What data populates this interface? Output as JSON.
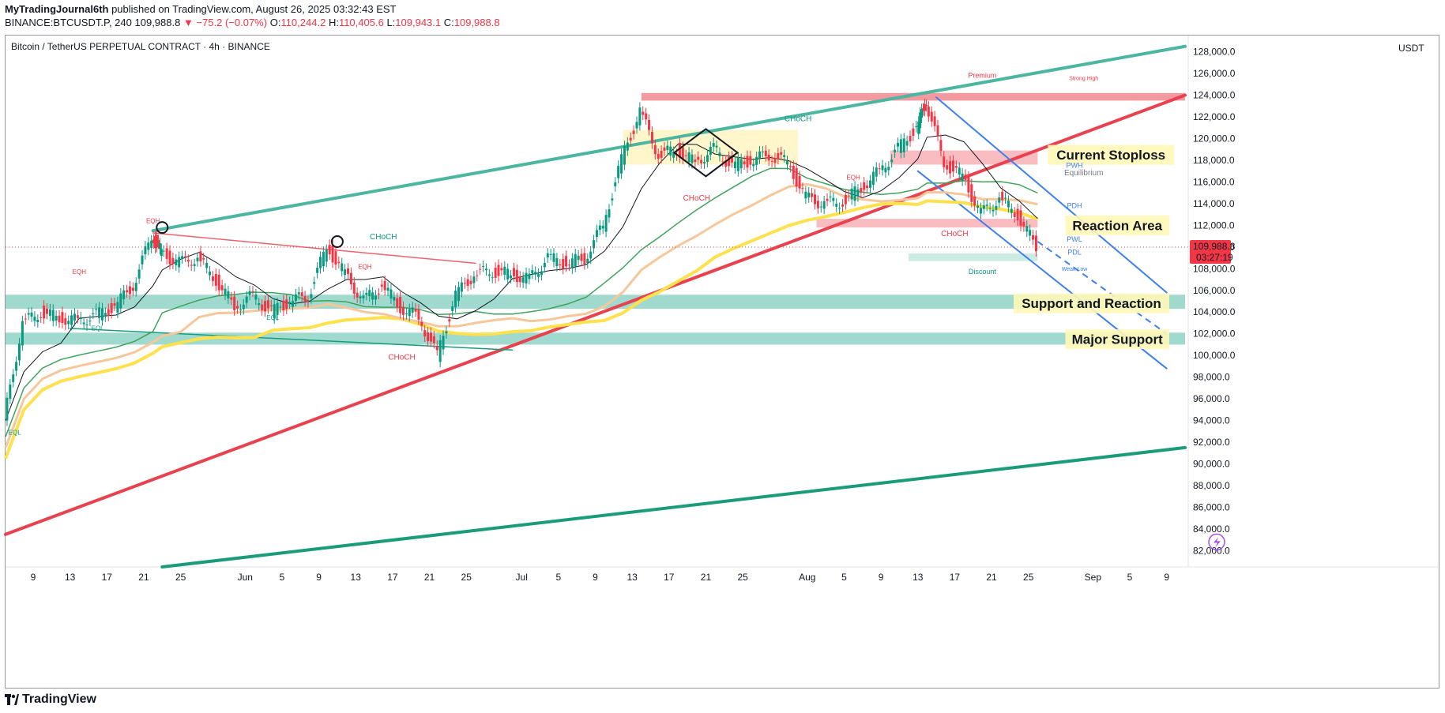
{
  "header": {
    "publisher": "MyTradingJournal6th",
    "published_text": " published on TradingView.com, August 26, 2025 03:32:43 EST",
    "symbol_line": "BINANCE:BTCUSDT.P, 240",
    "last": "109,988.8",
    "change": "▼ −75.2 (−0.07%)",
    "o_label": "O:",
    "o": "110,244.2",
    "h_label": "H:",
    "h": "110,405.6",
    "l_label": "L:",
    "l": "109,943.1",
    "c_label": "C:",
    "c": "109,988.8"
  },
  "footer": {
    "brand": "TradingView"
  },
  "colors": {
    "teal_line": "#4db6a1",
    "red_line": "#e8424f",
    "green_line": "#1a9c7b",
    "blue_channel": "#3d7ff0",
    "zone_teal": "#8fd3c6",
    "zone_red": "#f5a0a6",
    "label_bg": "#fff7b8"
  },
  "chart_data": {
    "type": "line",
    "title": "Bitcoin / TetherUS PERPETUAL CONTRACT · 4h · BINANCE",
    "unit": "USDT",
    "ylim": [
      80500,
      129500
    ],
    "y_ticks": [
      82000,
      84000,
      86000,
      88000,
      90000,
      92000,
      94000,
      96000,
      98000,
      100000,
      102000,
      104000,
      106000,
      108000,
      110000,
      112000,
      114000,
      116000,
      118000,
      120000,
      122000,
      124000,
      126000,
      128000
    ],
    "y_tick_labels": [
      "82,000.0",
      "84,000.0",
      "86,000.0",
      "88,000.0",
      "90,000.0",
      "92,000.0",
      "94,000.0",
      "96,000.0",
      "98,000.0",
      "100,000.0",
      "102,000.0",
      "104,000.0",
      "106,000.0",
      "108,000.0",
      "110,000.0",
      "112,000.0",
      "114,000.0",
      "116,000.0",
      "118,000.0",
      "120,000.0",
      "122,000.0",
      "124,000.0",
      "126,000.0",
      "128,000.0"
    ],
    "x_start": "2025-05-06",
    "x_end": "2025-09-11",
    "x_ticks": [
      {
        "date": "2025-05-09",
        "label": "9"
      },
      {
        "date": "2025-05-13",
        "label": "13"
      },
      {
        "date": "2025-05-17",
        "label": "17"
      },
      {
        "date": "2025-05-21",
        "label": "21"
      },
      {
        "date": "2025-05-25",
        "label": "25"
      },
      {
        "date": "2025-06-01",
        "label": "Jun"
      },
      {
        "date": "2025-06-05",
        "label": "5"
      },
      {
        "date": "2025-06-09",
        "label": "9"
      },
      {
        "date": "2025-06-13",
        "label": "13"
      },
      {
        "date": "2025-06-17",
        "label": "17"
      },
      {
        "date": "2025-06-21",
        "label": "21"
      },
      {
        "date": "2025-06-25",
        "label": "25"
      },
      {
        "date": "2025-07-01",
        "label": "Jul"
      },
      {
        "date": "2025-07-05",
        "label": "5"
      },
      {
        "date": "2025-07-09",
        "label": "9"
      },
      {
        "date": "2025-07-13",
        "label": "13"
      },
      {
        "date": "2025-07-17",
        "label": "17"
      },
      {
        "date": "2025-07-21",
        "label": "21"
      },
      {
        "date": "2025-07-25",
        "label": "25"
      },
      {
        "date": "2025-08-01",
        "label": "Aug"
      },
      {
        "date": "2025-08-05",
        "label": "5"
      },
      {
        "date": "2025-08-09",
        "label": "9"
      },
      {
        "date": "2025-08-13",
        "label": "13"
      },
      {
        "date": "2025-08-17",
        "label": "17"
      },
      {
        "date": "2025-08-21",
        "label": "21"
      },
      {
        "date": "2025-08-25",
        "label": "25"
      },
      {
        "date": "2025-09-01",
        "label": "Sep"
      },
      {
        "date": "2025-09-05",
        "label": "5"
      },
      {
        "date": "2025-09-09",
        "label": "9"
      }
    ],
    "price_series": {
      "x": [
        "2025-05-06",
        "2025-05-08",
        "2025-05-10",
        "2025-05-12",
        "2025-05-14",
        "2025-05-16",
        "2025-05-18",
        "2025-05-20",
        "2025-05-22",
        "2025-05-23",
        "2025-05-25",
        "2025-05-27",
        "2025-05-29",
        "2025-05-31",
        "2025-06-02",
        "2025-06-04",
        "2025-06-06",
        "2025-06-08",
        "2025-06-10",
        "2025-06-12",
        "2025-06-14",
        "2025-06-16",
        "2025-06-18",
        "2025-06-20",
        "2025-06-22",
        "2025-06-24",
        "2025-06-26",
        "2025-06-28",
        "2025-06-30",
        "2025-07-02",
        "2025-07-04",
        "2025-07-06",
        "2025-07-08",
        "2025-07-10",
        "2025-07-12",
        "2025-07-14",
        "2025-07-16",
        "2025-07-18",
        "2025-07-20",
        "2025-07-22",
        "2025-07-24",
        "2025-07-26",
        "2025-07-28",
        "2025-07-30",
        "2025-08-01",
        "2025-08-03",
        "2025-08-05",
        "2025-08-07",
        "2025-08-09",
        "2025-08-11",
        "2025-08-13",
        "2025-08-14",
        "2025-08-16",
        "2025-08-18",
        "2025-08-20",
        "2025-08-22",
        "2025-08-24",
        "2025-08-26"
      ],
      "y": [
        94000,
        103000,
        104000,
        103500,
        103200,
        103700,
        104500,
        106500,
        111000,
        109500,
        108500,
        109000,
        107000,
        104500,
        105500,
        104000,
        105000,
        105500,
        110000,
        107500,
        105000,
        106500,
        104500,
        103500,
        100000,
        105500,
        107500,
        107800,
        107500,
        107000,
        109000,
        108500,
        109000,
        112000,
        118000,
        122500,
        118500,
        119000,
        117800,
        119000,
        117500,
        118000,
        118500,
        117800,
        114500,
        114000,
        114200,
        115500,
        117000,
        119000,
        121000,
        123500,
        117800,
        116500,
        113000,
        114500,
        113000,
        109988.8
      ]
    },
    "last_price": "109,988.8",
    "countdown": "03:27:19",
    "lines": [
      {
        "name": "upper-teal-trendline",
        "from": [
          "2025-05-22",
          111500
        ],
        "to": [
          "2025-09-11",
          128500
        ]
      },
      {
        "name": "red-rising-trendline",
        "from": [
          "2025-05-06",
          83500
        ],
        "to": [
          "2025-09-11",
          124000
        ]
      },
      {
        "name": "lower-green-trendline",
        "from": [
          "2025-05-23",
          80500
        ],
        "to": [
          "2025-09-11",
          91500
        ]
      },
      {
        "name": "channel-upper",
        "from": [
          "2025-08-15",
          123800
        ],
        "to": [
          "2025-09-09",
          105800
        ]
      },
      {
        "name": "channel-lower",
        "from": [
          "2025-08-13",
          117000
        ],
        "to": [
          "2025-09-09",
          98800
        ]
      },
      {
        "name": "red-falling-trendline",
        "from": [
          "2025-05-22",
          111300
        ],
        "to": [
          "2025-06-26",
          108500
        ]
      },
      {
        "name": "teal-falling-line",
        "from": [
          "2025-05-13",
          102500
        ],
        "to": [
          "2025-06-30",
          100500
        ]
      }
    ],
    "zones": [
      {
        "name": "support-and-reaction-zone",
        "y0": 104300,
        "y1": 105600
      },
      {
        "name": "major-support-zone",
        "y0": 101000,
        "y1": 102100
      },
      {
        "name": "current-stoploss-zone",
        "y0": 117600,
        "y1": 118900
      },
      {
        "name": "reaction-area-zone",
        "y0": 111800,
        "y1": 112600
      },
      {
        "name": "premium-zone",
        "y0": 123500,
        "y1": 124200
      }
    ],
    "annotations": {
      "stoploss": "Current Stoploss",
      "reaction": "Reaction Area",
      "support_reaction": "Support and Reaction",
      "major_support": "Major Support",
      "choch": "CHoCH",
      "eqh": "EQH",
      "eql": "EQL",
      "premium": "Premium",
      "strong_high": "Strong High",
      "equilibrium": "Equilibrium",
      "discount": "Discount",
      "weak_low": "Weak Low",
      "pwh": "PWH",
      "pdh": "PDH",
      "pwl": "PWL",
      "pdl": "PDL"
    }
  }
}
